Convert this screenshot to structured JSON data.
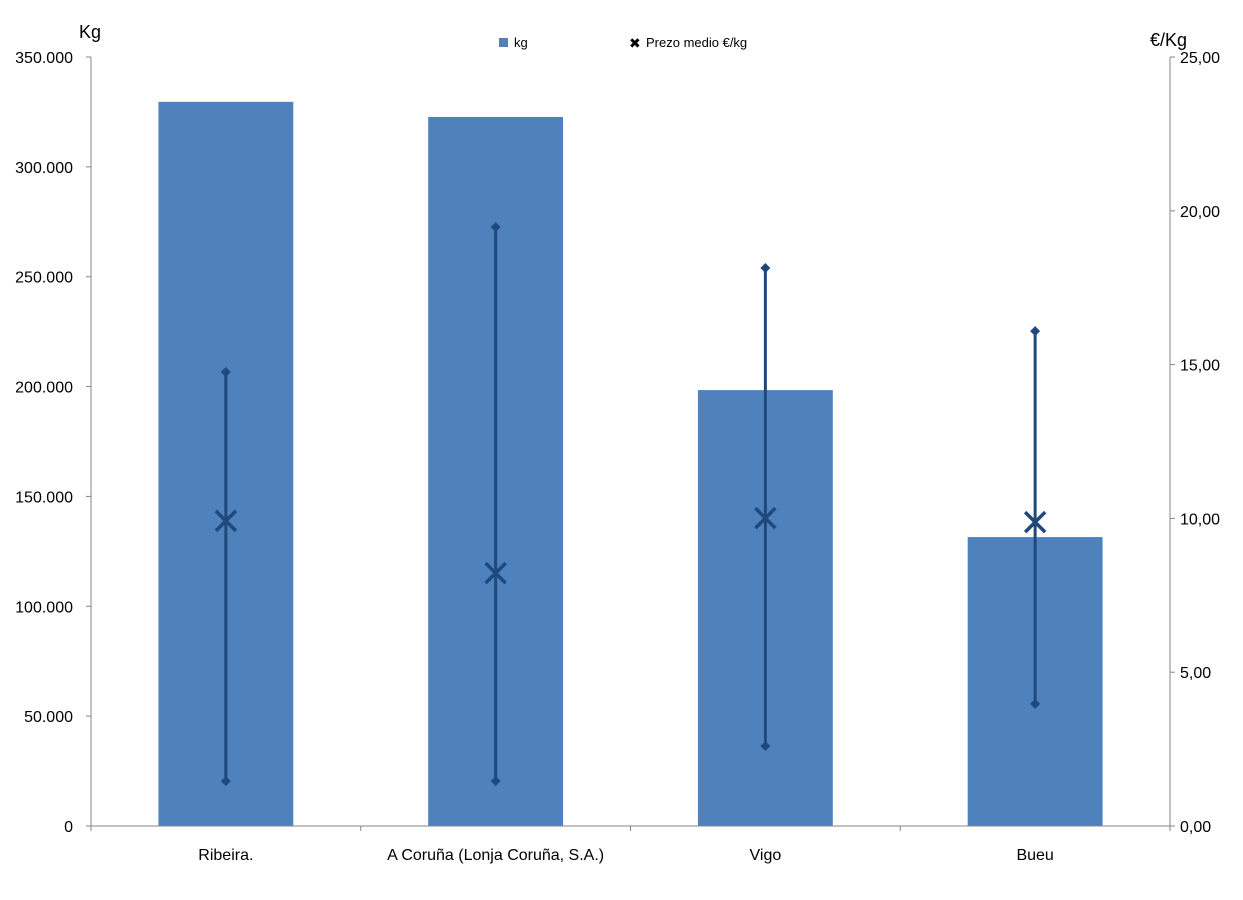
{
  "chart_data": {
    "type": "bar",
    "categories": [
      "Ribeira.",
      "A Coruña (Lonja Coruña, S.A.)",
      "Vigo",
      "Bueu"
    ],
    "series": [
      {
        "name": "kg",
        "axis": "left",
        "type": "bar",
        "values": [
          329600,
          322700,
          198400,
          131500
        ]
      },
      {
        "name": "Prezo medio €/kg",
        "axis": "right",
        "type": "marker-x",
        "values": [
          9.92,
          8.22,
          10.01,
          9.88
        ],
        "max": [
          14.76,
          19.47,
          18.14,
          16.09
        ],
        "min": [
          1.46,
          1.46,
          2.6,
          3.97
        ]
      }
    ],
    "ylabel": "Kg",
    "y2label": "€/Kg",
    "ylim": [
      0,
      350000
    ],
    "y2lim": [
      0,
      25
    ],
    "yticks": [
      "0",
      "50.000",
      "100.000",
      "150.000",
      "200.000",
      "250.000",
      "300.000",
      "350.000"
    ],
    "y2ticks": [
      "0,00",
      "5,00",
      "10,00",
      "15,00",
      "20,00",
      "25,00"
    ],
    "legend_position": "top-center",
    "grid": false,
    "colors": {
      "bar": "#4F81BD",
      "price": "#1F497D"
    }
  }
}
